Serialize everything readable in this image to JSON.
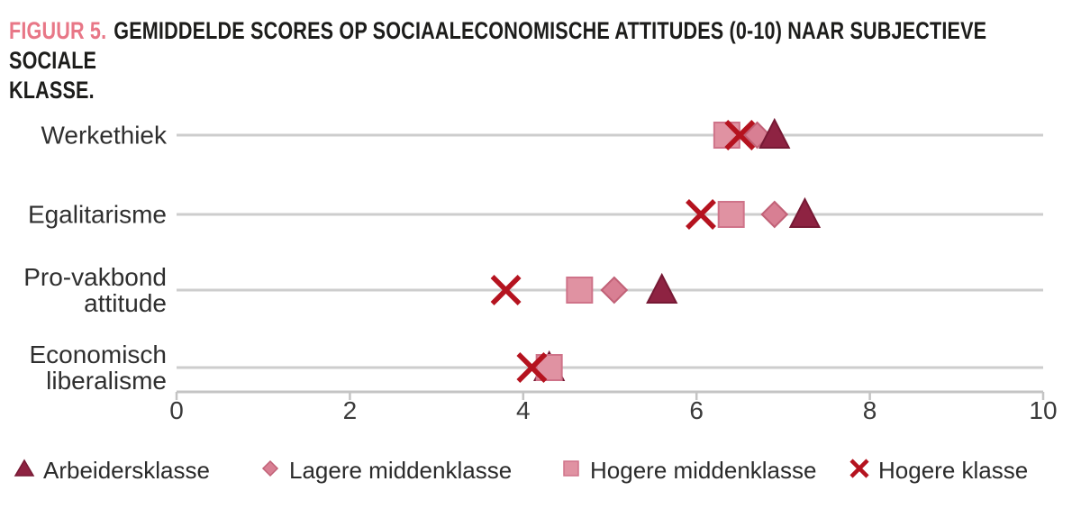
{
  "title": {
    "figure_label": "FIGUUR 5.",
    "line1": "GEMIDDELDE SCORES OP SOCIAALECONOMISCHE ATTITUDES (0-10) NAAR SUBJECTIEVE SOCIALE",
    "line2": "KLASSE."
  },
  "chart_data": {
    "type": "scatter",
    "orientation": "horizontal",
    "title": "FIGUUR 5. GEMIDDELDE SCORES OP SOCIAALECONOMISCHE ATTITUDES (0-10) NAAR SUBJECTIEVE SOCIALE KLASSE.",
    "categories": [
      "Werkethiek",
      "Egalitarisme",
      "Pro-vakbond\nattitude",
      "Economisch\nliberalisme"
    ],
    "series": [
      {
        "name": "Arbeidersklasse",
        "marker": "triangle",
        "fill": "#8e2342",
        "stroke": "#761934",
        "values": [
          6.9,
          7.25,
          5.6,
          4.3
        ]
      },
      {
        "name": "Lagere middenklasse",
        "marker": "diamond",
        "fill": "#d87f93",
        "stroke": "#c16177",
        "values": [
          6.7,
          6.9,
          5.05,
          4.25
        ]
      },
      {
        "name": "Hogere middenklasse",
        "marker": "square",
        "fill": "#e092a2",
        "stroke": "#cf7389",
        "values": [
          6.35,
          6.4,
          4.65,
          4.3
        ]
      },
      {
        "name": "Hogere klasse",
        "marker": "x",
        "fill": "#b5131f",
        "stroke": "#b5131f",
        "values": [
          6.5,
          6.05,
          3.8,
          4.1
        ]
      }
    ],
    "xlim": [
      0,
      10
    ],
    "xticks": [
      "0",
      "2",
      "4",
      "6",
      "8",
      "10"
    ],
    "xlabel": "",
    "ylabel": "",
    "legend_position": "bottom",
    "grid": "horizontal category lines",
    "colors": {
      "row_line": "#cdcdcd",
      "axis_line": "#c4c4c4",
      "title_accent": "#e87787"
    }
  }
}
